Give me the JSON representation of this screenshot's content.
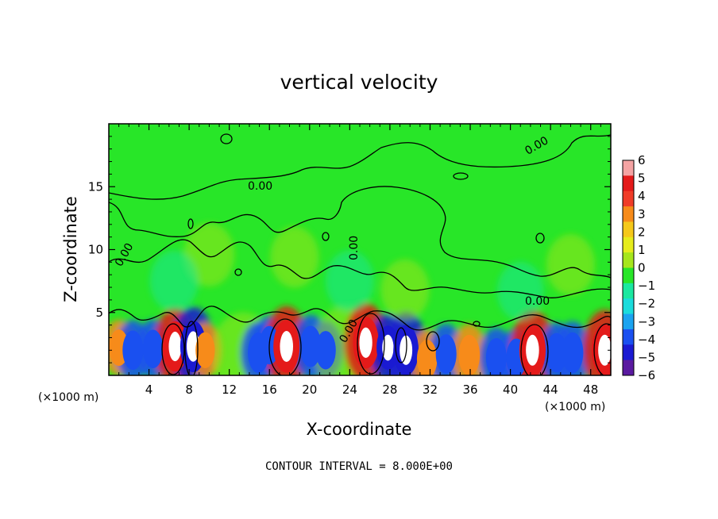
{
  "chart_data": {
    "type": "heatmap",
    "title": "vertical velocity",
    "xlabel": "X-coordinate",
    "ylabel": "Z-coordinate",
    "x_unit": "(×1000 m)",
    "xlim": [
      0,
      50
    ],
    "ylim": [
      0,
      20
    ],
    "x_ticks": [
      4,
      8,
      12,
      16,
      20,
      24,
      28,
      32,
      36,
      40,
      44,
      48
    ],
    "y_ticks": [
      5,
      10,
      15
    ],
    "colorbar": {
      "ticks": [
        6,
        5,
        4,
        3,
        2,
        1,
        0,
        -1,
        -2,
        -3,
        -4,
        -5,
        -6
      ],
      "colors": [
        "#f4a3a3",
        "#e41a1a",
        "#f03c28",
        "#f78b1a",
        "#f5c81a",
        "#e6ec1c",
        "#a6e61c",
        "#28e628",
        "#1ae8a0",
        "#1adcdc",
        "#1aa3f0",
        "#1a50f0",
        "#1a1ad2",
        "#5a1aa0"
      ]
    },
    "contour_labels": [
      "0.00",
      "0.00",
      "0.00",
      "0.00",
      "0.00",
      "0.00"
    ],
    "contour_interval": "CONTOUR INTERVAL = 8.000E+00",
    "cells": [
      {
        "x": 1.0,
        "z": 2.2,
        "w": 2.6
      },
      {
        "x": 2.4,
        "z": 2.0,
        "w": -3.2
      },
      {
        "x": 4.4,
        "z": 2.1,
        "w": -3.0
      },
      {
        "x": 6.6,
        "z": 2.3,
        "w": 5.5
      },
      {
        "x": 8.4,
        "z": 2.3,
        "w": -5.8
      },
      {
        "x": 9.6,
        "z": 2.0,
        "w": 2.5
      },
      {
        "x": 13.4,
        "z": 1.8,
        "w": 1.6
      },
      {
        "x": 14.9,
        "z": 1.8,
        "w": -3.4
      },
      {
        "x": 16.0,
        "z": 2.4,
        "w": -3.0
      },
      {
        "x": 17.7,
        "z": 2.3,
        "w": 6.0
      },
      {
        "x": 20.1,
        "z": 2.3,
        "w": -3.6
      },
      {
        "x": 21.6,
        "z": 2.0,
        "w": -3.0
      },
      {
        "x": 23.6,
        "z": 2.1,
        "w": 1.8
      },
      {
        "x": 25.6,
        "z": 2.6,
        "w": 5.8
      },
      {
        "x": 27.8,
        "z": 2.2,
        "w": -4.2
      },
      {
        "x": 29.6,
        "z": 2.0,
        "w": -5.5
      },
      {
        "x": 31.7,
        "z": 1.3,
        "w": 3.0
      },
      {
        "x": 33.6,
        "z": 1.7,
        "w": -3.2
      },
      {
        "x": 35.9,
        "z": 1.6,
        "w": 3.5
      },
      {
        "x": 38.6,
        "z": 1.4,
        "w": -3.2
      },
      {
        "x": 40.6,
        "z": 1.4,
        "w": -3.0
      },
      {
        "x": 42.2,
        "z": 2.0,
        "w": 6.0
      },
      {
        "x": 44.6,
        "z": 1.8,
        "w": -3.2
      },
      {
        "x": 46.2,
        "z": 1.8,
        "w": -3.5
      },
      {
        "x": 49.4,
        "z": 2.0,
        "w": 6.0
      },
      {
        "x": 10.0,
        "z": 9.6,
        "w": 0.9
      },
      {
        "x": 6.5,
        "z": 7.5,
        "w": -0.8
      },
      {
        "x": 18.5,
        "z": 9.4,
        "w": 0.8
      },
      {
        "x": 24.0,
        "z": 7.5,
        "w": -0.8
      },
      {
        "x": 29.5,
        "z": 6.8,
        "w": 0.8
      },
      {
        "x": 41.0,
        "z": 6.7,
        "w": -0.7
      },
      {
        "x": 46.0,
        "z": 8.8,
        "w": 0.8
      }
    ]
  }
}
